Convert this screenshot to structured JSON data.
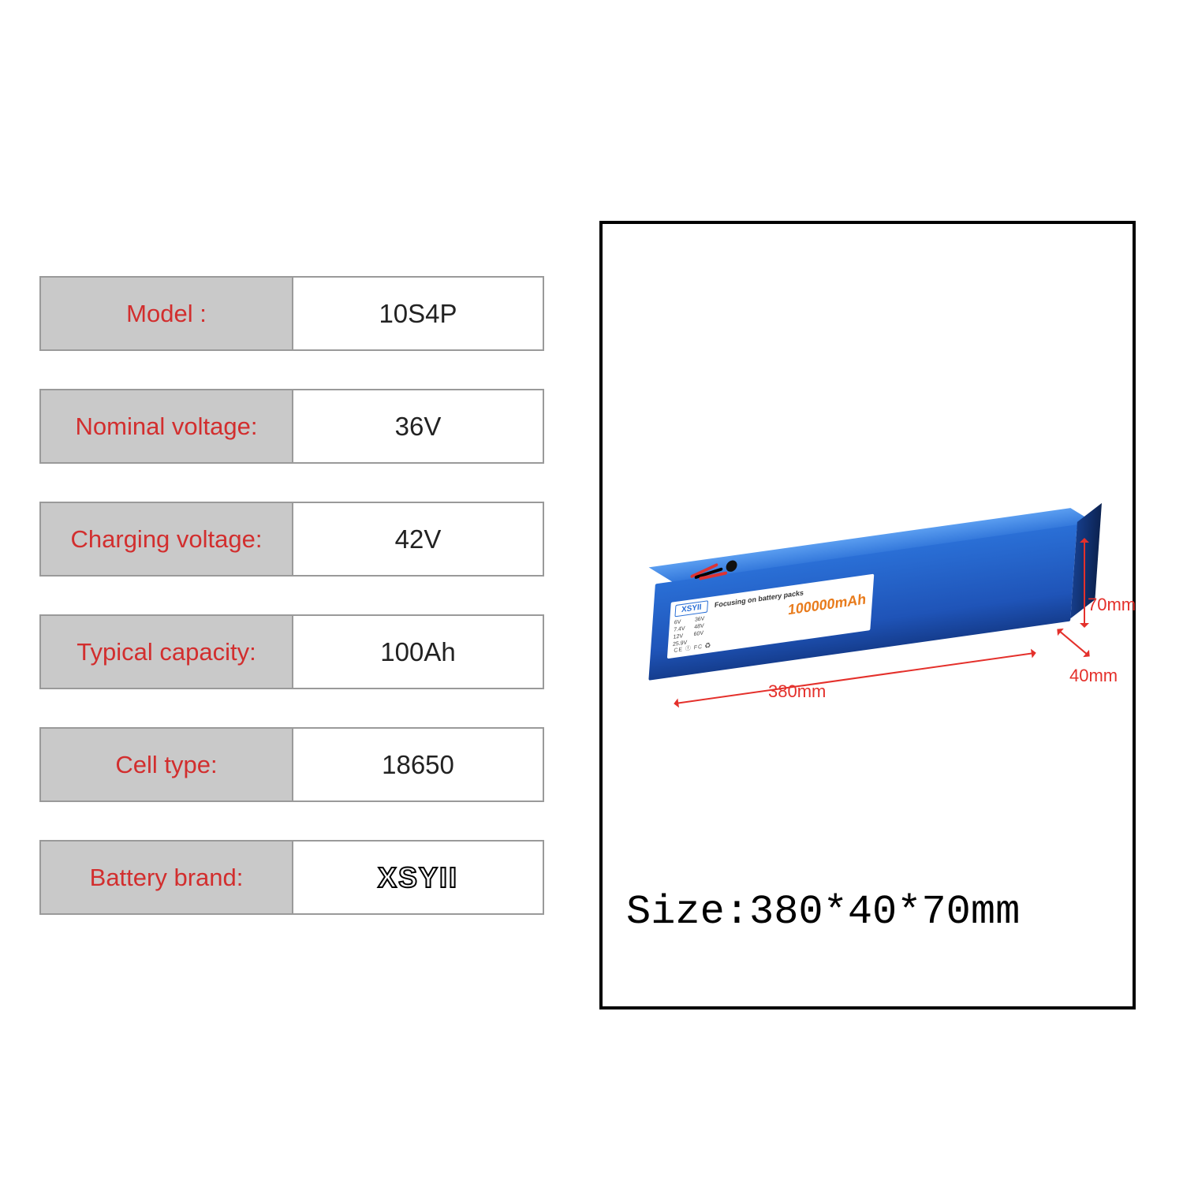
{
  "specs": [
    {
      "label": "Model    :",
      "value": "10S4P"
    },
    {
      "label": "Nominal  voltage:",
      "value": "36V"
    },
    {
      "label": "Charging voltage:",
      "value": "42V"
    },
    {
      "label": "Typical capacity:",
      "value": "100Ah"
    },
    {
      "label": "Cell type:",
      "value": "18650"
    },
    {
      "label": "Battery  brand:",
      "value": "XSYII",
      "is_logo": true
    }
  ],
  "battery_label": {
    "brand": "XSYII",
    "tagline": "Focusing on battery packs",
    "voltages_col1": [
      "6V",
      "7.4V",
      "12V",
      "25.9V"
    ],
    "voltages_col2": [
      "36V",
      "48V",
      "60V"
    ],
    "capacity": "100000mAh",
    "cert_line": "CE ⓕ FC ♻"
  },
  "dimensions": {
    "length_mm": "380mm",
    "height_mm": "70mm",
    "width_mm": "40mm",
    "size_line": "Size:380*40*70mm"
  },
  "colors": {
    "label_bg": "#c9c9c9",
    "label_text": "#d22e2e",
    "border": "#9a9a9a",
    "battery_blue": "#1f54b8",
    "arrow_red": "#e4302b",
    "capacity_orange": "#e87b1c"
  }
}
